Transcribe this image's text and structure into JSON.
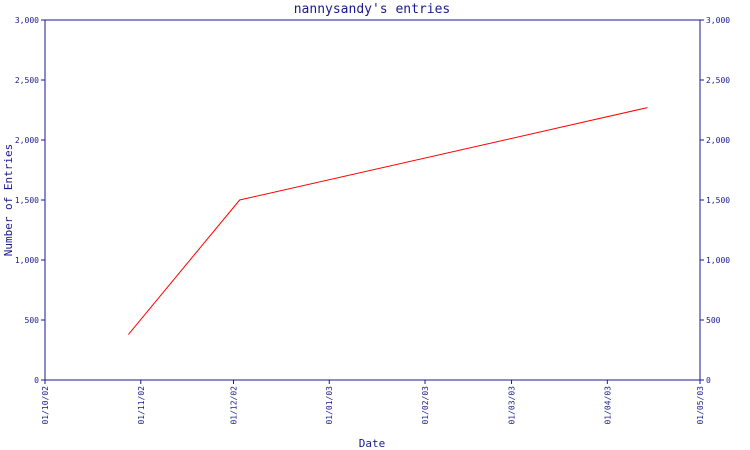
{
  "chart_data": {
    "type": "line",
    "title": "nannysandy's entries",
    "xlabel": "Date",
    "ylabel": "Number of Entries",
    "x_ticks": [
      "01/10/02",
      "01/11/02",
      "01/12/02",
      "01/01/03",
      "01/02/03",
      "01/03/03",
      "01/04/03",
      "01/05/03"
    ],
    "x_range": [
      "2002-10-01",
      "2003-05-01"
    ],
    "ylim": [
      0,
      3000
    ],
    "y_ticks": [
      0,
      500,
      1000,
      1500,
      2000,
      2500,
      3000
    ],
    "y_tick_labels": [
      "0",
      "500",
      "1,000",
      "1,500",
      "2,000",
      "2,500",
      "3,000"
    ],
    "series": [
      {
        "color": "#ff0000",
        "points": [
          {
            "x": "2002-10-28",
            "y": 380
          },
          {
            "x": "2002-12-03",
            "y": 1500
          },
          {
            "x": "2003-04-14",
            "y": 2270
          }
        ]
      }
    ],
    "grid": false,
    "right_axis_mirror": true
  }
}
